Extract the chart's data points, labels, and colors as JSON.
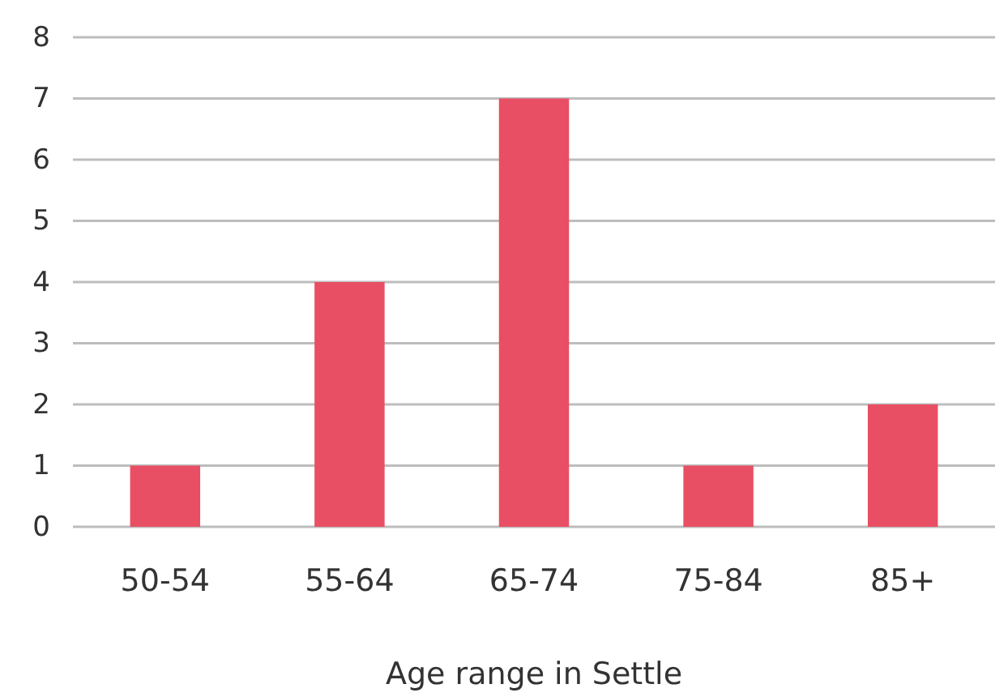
{
  "chart_data": {
    "type": "bar",
    "xlabel": "Age range in Settle",
    "categories": [
      "50-54",
      "55-64",
      "65-74",
      "75-84",
      "85+"
    ],
    "values": [
      1,
      4,
      7,
      1,
      2
    ],
    "color": "#e94f64",
    "ylim": [
      0,
      8
    ],
    "yticks": [
      0,
      1,
      2,
      3,
      4,
      5,
      6,
      7,
      8
    ],
    "grid": "y"
  }
}
